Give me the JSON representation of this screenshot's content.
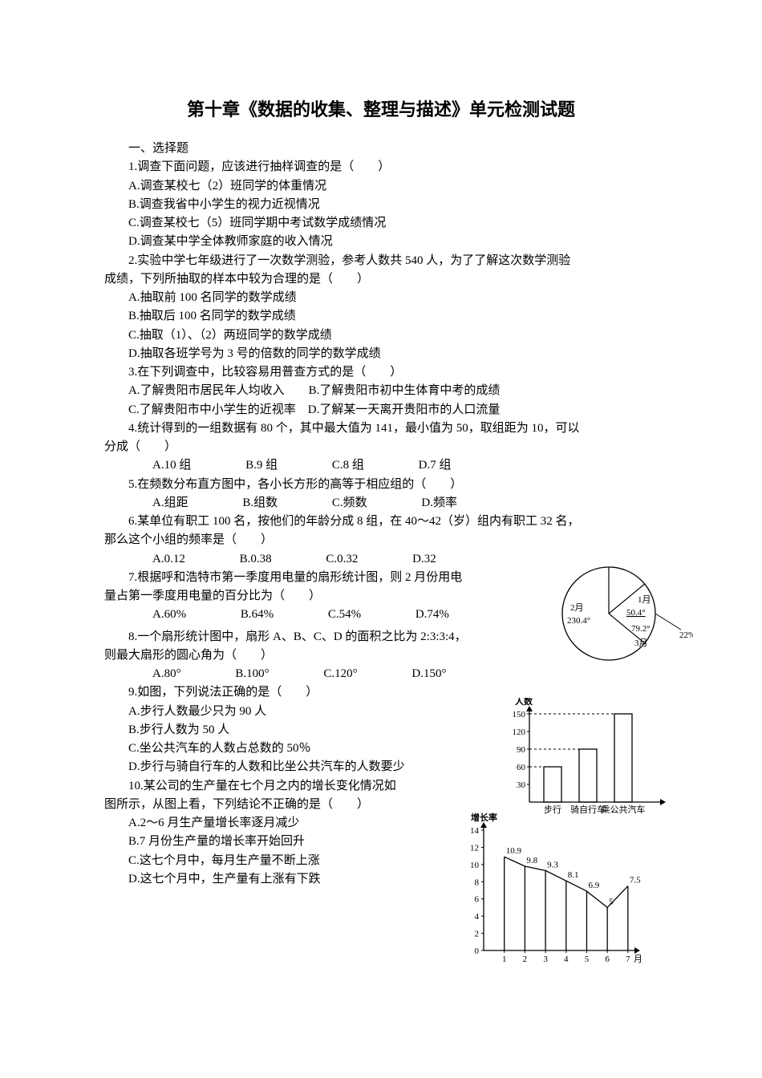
{
  "title": "第十章《数据的收集、整理与描述》单元检测试题",
  "section1": "一、选择题",
  "q1": "1.调查下面问题，应该进行抽样调查的是（　　）",
  "q1a": "A.调查某校七（2）班同学的体重情况",
  "q1b": "B.调查我省中小学生的视力近视情况",
  "q1c": "C.调查某校七（5）班同学期中考试数学成绩情况",
  "q1d": "D.调查某中学全体教师家庭的收入情况",
  "q2a": "2.实验中学七年级进行了一次数学测验，参考人数共 540 人，为了了解这次数学测验",
  "q2b": "成绩，下列所抽取的样本中较为合理的是（　　）",
  "q2oa": "A.抽取前 100 名同学的数学成绩",
  "q2ob": "B.抽取后 100 名同学的数学成绩",
  "q2oc": "C.抽取（1）、（2）两班同学的数学成绩",
  "q2od": "D.抽取各班学号为 3 号的倍数的同学的数学成绩",
  "q3": "3.在下列调查中，比较容易用普查方式的是（　　）",
  "q3ab": "A.了解贵阳市居民年人均收入　　B.了解贵阳市初中生体育中考的成绩",
  "q3cd": "C.了解贵阳市中小学生的近视率　D.了解某一天离开贵阳市的人口流量",
  "q4a": "4.统计得到的一组数据有 80 个，其中最大值为 141，最小值为 50，取组距为 10，可以",
  "q4b": "分成（　　）",
  "q4o": {
    "a": "A.10 组",
    "b": "B.9 组",
    "c": "C.8 组",
    "d": "D.7 组"
  },
  "q5": "5.在频数分布直方图中，各小长方形的高等于相应组的（　　）",
  "q5o": {
    "a": "A.组距",
    "b": "B.组数",
    "c": "C.频数",
    "d": "D.频率"
  },
  "q6a": "6.某单位有职工 100 名，按他们的年龄分成 8 组，在 40～42（岁）组内有职工 32 名，",
  "q6b": "那么这个小组的频率是（　　）",
  "q6o": {
    "a": "A.0.12",
    "b": "B.0.38",
    "c": "C.0.32",
    "d": "D.32"
  },
  "q7a": "7.根据呼和浩特市第一季度用电量的扇形统计图，则 2 月份用电",
  "q7b": "量占第一季度用电量的百分比为（　　）",
  "q7o": {
    "a": "A.60%",
    "b": "B.64%",
    "c": "C.54%",
    "d": "D.74%"
  },
  "q8a": "8.一个扇形统计图中，扇形 A、B、C、D 的面积之比为 2:3:3:4，",
  "q8b": "则最大扇形的圆心角为（　　）",
  "q8o": {
    "a": "A.80°",
    "b": "B.100°",
    "c": "C.120°",
    "d": "D.150°"
  },
  "q9": "9.如图，下列说法正确的是（　　）",
  "q9a": "A.步行人数最少只为 90 人",
  "q9b": "B.步行人数为 50 人",
  "q9c": "C.坐公共汽车的人数占总数的 50％",
  "q9d": "D.步行与骑自行车的人数和比坐公共汽车的人数要少",
  "q10a": "10.某公司的生产量在七个月之内的增长变化情况如",
  "q10b": "图所示，从图上看，下列结论不正确的是（　　）",
  "q10oa": "A.2～6 月生产量增长率逐月减少",
  "q10ob": "B.7 月份生产量的增长率开始回升",
  "q10oc": "C.这七个月中，每月生产量不断上涨",
  "q10od": "D.这七个月中，生产量有上涨有下跌",
  "pie": {
    "stroke": "#000",
    "label_jan": "1月",
    "label_jan_deg": "50.4°",
    "label_feb": "2月",
    "label_feb_deg": "230.4°",
    "label_mar": "3月",
    "label_mar_deg": "79.2°",
    "label_22": "22%"
  },
  "bar": {
    "ytitle": "人数",
    "yticks": [
      "30",
      "60",
      "90",
      "120",
      "150"
    ],
    "xlabels": [
      "步行",
      "骑自行车",
      "乘公共汽车"
    ],
    "values": [
      60,
      90,
      150
    ],
    "axis_color": "#000",
    "grid_dash": "3,3"
  },
  "linechart": {
    "ytitle": "增长率",
    "xtitle": "月",
    "yticks": [
      "0",
      "2",
      "4",
      "6",
      "8",
      "10",
      "12",
      "14"
    ],
    "xticks": [
      "1",
      "2",
      "3",
      "4",
      "5",
      "6",
      "7"
    ],
    "values": [
      10.9,
      9.8,
      9.3,
      8.1,
      6.9,
      5.0,
      7.5
    ],
    "labels": [
      "10.9",
      "9.8",
      "9.3",
      "8.1",
      "6.9",
      "5",
      "7.5"
    ],
    "axis_color": "#000"
  }
}
